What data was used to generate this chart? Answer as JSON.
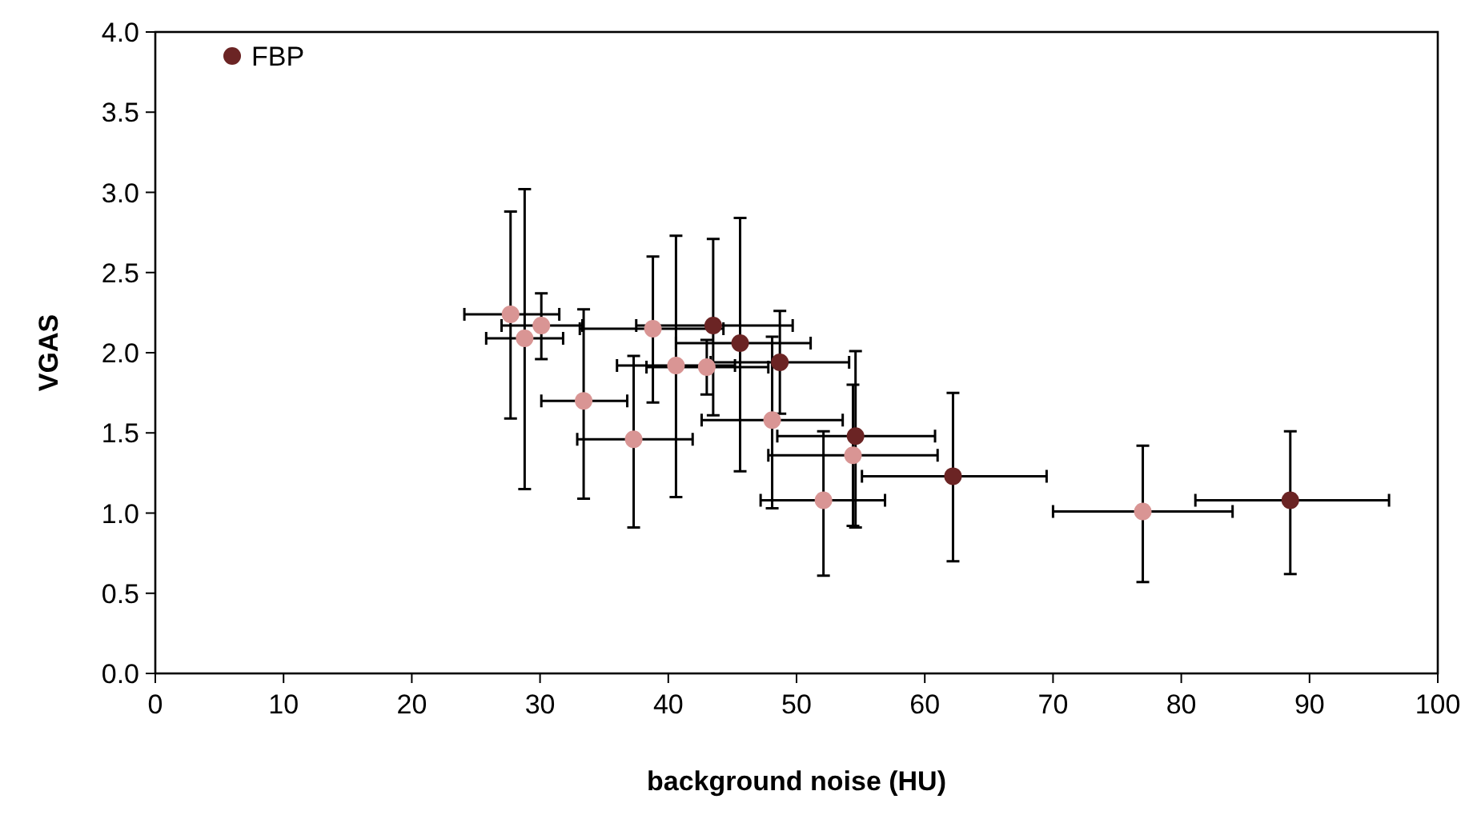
{
  "chart_data": {
    "type": "scatter",
    "xlabel": "background noise (HU)",
    "ylabel": "VGAS",
    "xlim": [
      0,
      100
    ],
    "xticks": [
      0,
      10,
      20,
      30,
      40,
      50,
      60,
      70,
      80,
      90,
      100
    ],
    "ylim": [
      0,
      4
    ],
    "yticks": [
      {
        "value": 0,
        "label": "0.0"
      },
      {
        "value": 0.5,
        "label": "0.5"
      },
      {
        "value": 1,
        "label": "1.0"
      },
      {
        "value": 1.5,
        "label": "1.5"
      },
      {
        "value": 2,
        "label": "2.0"
      },
      {
        "value": 2.5,
        "label": "2.5"
      },
      {
        "value": 3,
        "label": "3.0"
      },
      {
        "value": 3.5,
        "label": "3.5"
      },
      {
        "value": 4,
        "label": "4.0"
      }
    ],
    "grid": false,
    "legend": "top left",
    "marker": "circle",
    "series": [
      {
        "name": "FBP",
        "color": "#6b2424",
        "x": [
          43.5,
          45.6,
          48.7,
          54.6,
          62.2,
          88.5
        ],
        "values": [
          2.17,
          2.06,
          1.94,
          1.48,
          1.23,
          1.08
        ],
        "errors": [
          [
            1.61,
            2.71
          ],
          [
            1.26,
            2.84
          ],
          [
            1.62,
            2.26
          ],
          [
            0.91,
            2.01
          ],
          [
            0.7,
            1.75
          ],
          [
            0.62,
            1.51
          ]
        ],
        "xerrors": [
          [
            37.5,
            49.7
          ],
          [
            40.6,
            51.1
          ],
          [
            43.3,
            54.1
          ],
          [
            48.5,
            60.8
          ],
          [
            55.1,
            69.5
          ],
          [
            81.1,
            96.2
          ]
        ]
      },
      {
        "color": "#d99594",
        "x": [
          27.7,
          28.8,
          30.1,
          33.4,
          37.3,
          38.8,
          40.6,
          43.0,
          48.1,
          54.4,
          52.1,
          77.0
        ],
        "values": [
          2.24,
          2.09,
          2.17,
          1.7,
          1.46,
          2.15,
          1.92,
          1.91,
          1.58,
          1.36,
          1.08,
          1.01
        ],
        "errors": [
          [
            1.59,
            2.88
          ],
          [
            1.15,
            3.02
          ],
          [
            1.96,
            2.37
          ],
          [
            1.09,
            2.27
          ],
          [
            0.91,
            1.98
          ],
          [
            1.69,
            2.6
          ],
          [
            1.1,
            2.73
          ],
          [
            1.74,
            2.08
          ],
          [
            1.03,
            2.1
          ],
          [
            0.92,
            1.8
          ],
          [
            0.61,
            1.51
          ],
          [
            0.57,
            1.42
          ]
        ],
        "xerrors": [
          [
            24.1,
            31.5
          ],
          [
            25.8,
            31.8
          ],
          [
            27.0,
            33.3
          ],
          [
            30.1,
            36.8
          ],
          [
            32.9,
            41.9
          ],
          [
            33.1,
            44.3
          ],
          [
            36.0,
            45.2
          ],
          [
            38.3,
            47.8
          ],
          [
            42.6,
            53.6
          ],
          [
            47.8,
            61.0
          ],
          [
            47.2,
            56.9
          ],
          [
            70.0,
            84.0
          ]
        ]
      }
    ]
  }
}
